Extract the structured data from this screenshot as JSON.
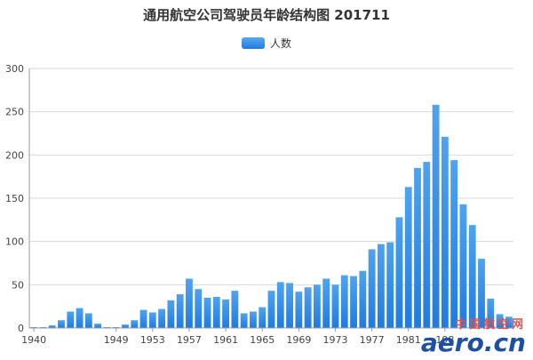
{
  "chart_data": {
    "type": "bar",
    "title": "通用航空公司驾驶员年龄结构图 201711",
    "legend": {
      "position": "top-center"
    },
    "series": [
      {
        "name": "人数",
        "color": "#2f8ce8",
        "values": [
          1,
          1,
          3,
          9,
          19,
          23,
          17,
          5,
          1,
          1,
          4,
          9,
          21,
          18,
          22,
          32,
          39,
          57,
          45,
          35,
          36,
          33,
          43,
          17,
          19,
          24,
          43,
          53,
          52,
          42,
          47,
          50,
          57,
          50,
          61,
          60,
          66,
          91,
          97,
          99,
          128,
          163,
          185,
          192,
          258,
          221,
          194,
          143,
          119,
          80,
          34,
          16,
          13
        ]
      }
    ],
    "x_start": 1940,
    "x_tick_labels": [
      "1940",
      "1949",
      "1953",
      "1957",
      "1961",
      "1965",
      "1969",
      "1973",
      "1977",
      "1981",
      "198"
    ],
    "x_tick_years": [
      1940,
      1949,
      1953,
      1957,
      1961,
      1965,
      1969,
      1973,
      1977,
      1981,
      1985
    ],
    "ylim": [
      0,
      300
    ],
    "y_ticks": [
      0,
      50,
      100,
      150,
      200,
      250,
      300
    ],
    "grid": true
  },
  "watermark": {
    "text_cn": "中国航空网",
    "text_en": "aero.cn"
  }
}
